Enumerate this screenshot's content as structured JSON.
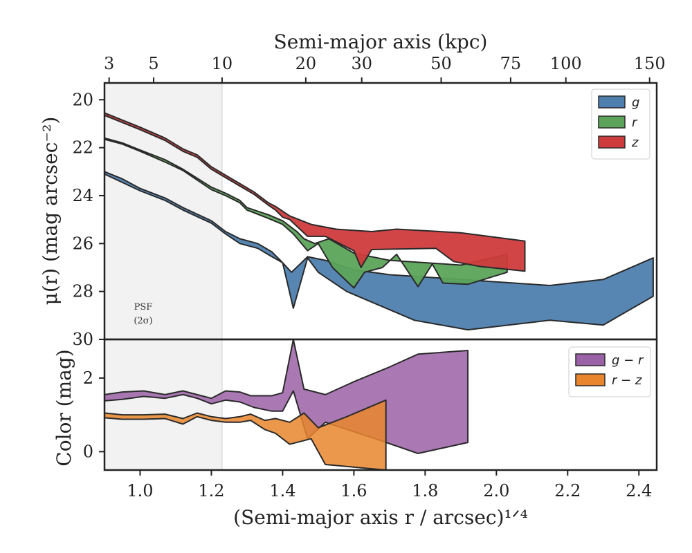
{
  "chart_data": [
    {
      "type": "area",
      "panel": "surface-brightness",
      "ylabel": "μ(r) (mag arcsec⁻²)",
      "top_xlabel": "Semi-major axis (kpc)",
      "top_ticks": [
        {
          "label": "3",
          "x": 0.913
        },
        {
          "label": "5",
          "x": 1.038
        },
        {
          "label": "10",
          "x": 1.23
        },
        {
          "label": "20",
          "x": 1.465
        },
        {
          "label": "30",
          "x": 1.622
        },
        {
          "label": "50",
          "x": 1.845
        },
        {
          "label": "75",
          "x": 2.04
        },
        {
          "label": "100",
          "x": 2.195
        },
        {
          "label": "150",
          "x": 2.43
        }
      ],
      "xlim": [
        0.9,
        2.45
      ],
      "ylim": [
        30,
        19.3
      ],
      "yticks": [
        "20",
        "22",
        "24",
        "26",
        "28",
        "30"
      ],
      "psf_label": [
        "PSF",
        "(2σ)"
      ],
      "psf_span": [
        0.9,
        1.23
      ],
      "legend": [
        {
          "name": "g",
          "color": "#4e7faf"
        },
        {
          "name": "r",
          "color": "#5ca45a"
        },
        {
          "name": "z",
          "color": "#cf3b3d"
        }
      ],
      "series": [
        {
          "name": "g",
          "color": "#4e7faf",
          "upper": [
            [
              0.9,
              23.0
            ],
            [
              0.95,
              23.3
            ],
            [
              1.0,
              23.7
            ],
            [
              1.07,
              24.1
            ],
            [
              1.12,
              24.5
            ],
            [
              1.2,
              25.05
            ],
            [
              1.24,
              25.5
            ],
            [
              1.28,
              25.8
            ],
            [
              1.33,
              26.0
            ],
            [
              1.37,
              26.35
            ],
            [
              1.4,
              26.8
            ],
            [
              1.425,
              27.2
            ],
            [
              1.47,
              26.55
            ],
            [
              1.52,
              26.7
            ],
            [
              1.6,
              27.1
            ],
            [
              1.7,
              27.3
            ],
            [
              1.9,
              27.5
            ],
            [
              2.15,
              27.75
            ],
            [
              2.3,
              27.5
            ],
            [
              2.44,
              26.6
            ]
          ],
          "lower": [
            [
              2.44,
              28.2
            ],
            [
              2.3,
              29.4
            ],
            [
              2.15,
              29.2
            ],
            [
              1.92,
              29.6
            ],
            [
              1.77,
              29.2
            ],
            [
              1.58,
              28.0
            ],
            [
              1.5,
              27.2
            ],
            [
              1.47,
              26.6
            ],
            [
              1.43,
              28.7
            ],
            [
              1.4,
              26.8
            ],
            [
              1.37,
              26.55
            ],
            [
              1.33,
              26.2
            ],
            [
              1.28,
              26.0
            ],
            [
              1.24,
              25.6
            ],
            [
              1.2,
              25.15
            ],
            [
              1.12,
              24.6
            ],
            [
              1.07,
              24.2
            ],
            [
              1.0,
              23.8
            ],
            [
              0.95,
              23.45
            ],
            [
              0.9,
              23.1
            ]
          ]
        },
        {
          "name": "r",
          "color": "#5ca45a",
          "upper": [
            [
              0.9,
              21.6
            ],
            [
              0.95,
              21.8
            ],
            [
              1.0,
              22.1
            ],
            [
              1.07,
              22.5
            ],
            [
              1.12,
              22.9
            ],
            [
              1.2,
              23.65
            ],
            [
              1.24,
              23.9
            ],
            [
              1.28,
              24.2
            ],
            [
              1.3,
              24.5
            ],
            [
              1.36,
              24.8
            ],
            [
              1.4,
              25.05
            ],
            [
              1.44,
              25.5
            ],
            [
              1.46,
              25.8
            ],
            [
              1.49,
              26.0
            ],
            [
              1.53,
              25.8
            ],
            [
              1.6,
              26.4
            ],
            [
              1.7,
              26.7
            ],
            [
              1.9,
              26.9
            ],
            [
              2.03,
              26.45
            ]
          ],
          "lower": [
            [
              2.03,
              27.2
            ],
            [
              1.92,
              27.7
            ],
            [
              1.85,
              27.65
            ],
            [
              1.82,
              26.85
            ],
            [
              1.78,
              27.8
            ],
            [
              1.72,
              26.45
            ],
            [
              1.68,
              27.0
            ],
            [
              1.63,
              27.2
            ],
            [
              1.6,
              27.85
            ],
            [
              1.54,
              27.0
            ],
            [
              1.5,
              26.0
            ],
            [
              1.47,
              26.3
            ],
            [
              1.43,
              25.6
            ],
            [
              1.4,
              25.2
            ],
            [
              1.36,
              24.95
            ],
            [
              1.3,
              24.6
            ],
            [
              1.28,
              24.3
            ],
            [
              1.24,
              24.0
            ],
            [
              1.2,
              23.75
            ],
            [
              1.12,
              22.95
            ],
            [
              1.07,
              22.6
            ],
            [
              1.0,
              22.15
            ],
            [
              0.95,
              21.85
            ],
            [
              0.9,
              21.65
            ]
          ]
        },
        {
          "name": "z",
          "color": "#cf3b3d",
          "upper": [
            [
              0.9,
              20.55
            ],
            [
              0.95,
              20.85
            ],
            [
              1.0,
              21.15
            ],
            [
              1.07,
              21.6
            ],
            [
              1.12,
              22.05
            ],
            [
              1.16,
              22.3
            ],
            [
              1.2,
              22.8
            ],
            [
              1.24,
              23.15
            ],
            [
              1.28,
              23.5
            ],
            [
              1.32,
              23.85
            ],
            [
              1.36,
              24.3
            ],
            [
              1.38,
              24.45
            ],
            [
              1.42,
              24.85
            ],
            [
              1.48,
              25.2
            ],
            [
              1.55,
              25.4
            ],
            [
              1.65,
              25.5
            ],
            [
              1.72,
              25.4
            ],
            [
              1.9,
              25.55
            ],
            [
              2.08,
              25.9
            ]
          ],
          "lower": [
            [
              2.08,
              27.15
            ],
            [
              1.95,
              26.95
            ],
            [
              1.88,
              26.75
            ],
            [
              1.83,
              26.2
            ],
            [
              1.65,
              26.25
            ],
            [
              1.62,
              27.0
            ],
            [
              1.6,
              26.3
            ],
            [
              1.52,
              25.7
            ],
            [
              1.47,
              25.7
            ],
            [
              1.42,
              25.0
            ],
            [
              1.4,
              24.9
            ],
            [
              1.38,
              24.6
            ],
            [
              1.36,
              24.4
            ],
            [
              1.32,
              23.95
            ],
            [
              1.28,
              23.6
            ],
            [
              1.24,
              23.25
            ],
            [
              1.2,
              22.9
            ],
            [
              1.16,
              22.4
            ],
            [
              1.12,
              22.15
            ],
            [
              1.07,
              21.7
            ],
            [
              1.0,
              21.25
            ],
            [
              0.95,
              20.95
            ],
            [
              0.9,
              20.65
            ]
          ]
        }
      ]
    },
    {
      "type": "area",
      "panel": "color",
      "xlabel": "(Semi-major axis r / arcsec)¹ᐟ⁴",
      "ylabel": "Color (mag)",
      "xlim": [
        0.9,
        2.45
      ],
      "ylim": [
        -0.5,
        3.05
      ],
      "xticks": [
        "1.0",
        "1.2",
        "1.4",
        "1.6",
        "1.8",
        "2.0",
        "2.2",
        "2.4"
      ],
      "yticks": [
        "0",
        "2"
      ],
      "legend": [
        {
          "name": "g − r",
          "color": "#9b61a6"
        },
        {
          "name": "r − z",
          "color": "#e9862d"
        }
      ],
      "series": [
        {
          "name": "g − r",
          "color": "#9b61a6",
          "upper": [
            [
              0.9,
              1.55
            ],
            [
              0.95,
              1.62
            ],
            [
              1.01,
              1.65
            ],
            [
              1.07,
              1.55
            ],
            [
              1.12,
              1.65
            ],
            [
              1.16,
              1.55
            ],
            [
              1.2,
              1.45
            ],
            [
              1.24,
              1.65
            ],
            [
              1.28,
              1.62
            ],
            [
              1.31,
              1.52
            ],
            [
              1.37,
              1.52
            ],
            [
              1.4,
              1.6
            ],
            [
              1.43,
              3.05
            ],
            [
              1.46,
              1.7
            ],
            [
              1.52,
              1.55
            ],
            [
              1.6,
              1.9
            ],
            [
              1.7,
              2.3
            ],
            [
              1.78,
              2.65
            ],
            [
              1.92,
              2.75
            ]
          ],
          "lower": [
            [
              1.92,
              0.25
            ],
            [
              1.78,
              -0.05
            ],
            [
              1.66,
              0.35
            ],
            [
              1.52,
              0.8
            ],
            [
              1.47,
              0.35
            ],
            [
              1.43,
              1.65
            ],
            [
              1.4,
              1.1
            ],
            [
              1.37,
              1.1
            ],
            [
              1.32,
              1.2
            ],
            [
              1.28,
              1.35
            ],
            [
              1.24,
              1.4
            ],
            [
              1.2,
              1.3
            ],
            [
              1.16,
              1.45
            ],
            [
              1.12,
              1.55
            ],
            [
              1.07,
              1.45
            ],
            [
              1.01,
              1.5
            ],
            [
              0.95,
              1.42
            ],
            [
              0.9,
              1.38
            ]
          ]
        },
        {
          "name": "r − z",
          "color": "#e9862d",
          "upper": [
            [
              0.9,
              1.05
            ],
            [
              0.95,
              1.0
            ],
            [
              1.01,
              1.0
            ],
            [
              1.07,
              1.02
            ],
            [
              1.12,
              0.9
            ],
            [
              1.16,
              1.05
            ],
            [
              1.2,
              0.95
            ],
            [
              1.24,
              0.9
            ],
            [
              1.28,
              0.95
            ],
            [
              1.31,
              1.02
            ],
            [
              1.35,
              0.85
            ],
            [
              1.38,
              0.9
            ],
            [
              1.42,
              0.8
            ],
            [
              1.46,
              1.05
            ],
            [
              1.5,
              0.65
            ],
            [
              1.58,
              0.95
            ],
            [
              1.69,
              1.4
            ]
          ],
          "lower": [
            [
              1.69,
              -0.55
            ],
            [
              1.52,
              -0.35
            ],
            [
              1.48,
              0.35
            ],
            [
              1.42,
              0.2
            ],
            [
              1.38,
              0.5
            ],
            [
              1.35,
              0.6
            ],
            [
              1.31,
              0.85
            ],
            [
              1.28,
              0.8
            ],
            [
              1.24,
              0.8
            ],
            [
              1.2,
              0.85
            ],
            [
              1.16,
              0.95
            ],
            [
              1.12,
              0.75
            ],
            [
              1.07,
              0.9
            ],
            [
              1.01,
              0.88
            ],
            [
              0.95,
              0.88
            ],
            [
              0.9,
              0.92
            ]
          ]
        }
      ]
    }
  ]
}
